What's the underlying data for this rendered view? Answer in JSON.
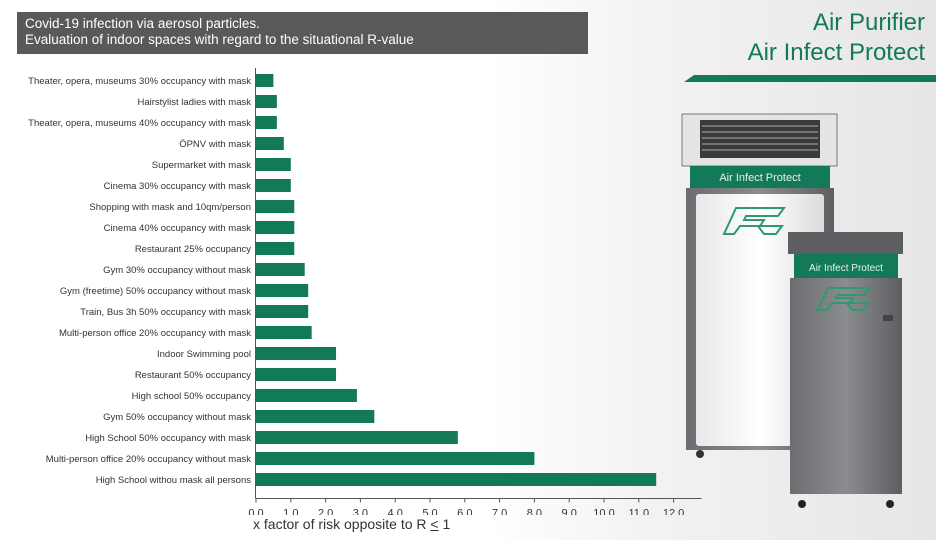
{
  "header": {
    "line1": "Covid-19 infection via aerosol particles.",
    "line2": "Evaluation of indoor spaces with regard to the situational R-value"
  },
  "brand": {
    "line1": "Air Purifier",
    "line2": "Air Infect Protect",
    "color": "#137a59"
  },
  "devices": {
    "large_label": "Air Infect Protect",
    "small_label": "Air Infect Protect"
  },
  "chart_data": {
    "type": "bar",
    "orientation": "horizontal",
    "categories": [
      "Theater, opera, museums 30% occupancy with mask",
      "Hairstylist ladies with mask",
      "Theater, opera, museums 40% occupancy with mask",
      "ÖPNV with mask",
      "Supermarket with mask",
      "Cinema 30% occupancy with mask",
      "Shopping with mask and 10qm/person",
      "Cinema 40% occupancy with mask",
      "Restaurant 25% occupancy",
      "Gym 30% occupancy without mask",
      "Gym (freetime) 50% occupancy without mask",
      "Train, Bus 3h 50% occupancy with mask",
      "Multi-person office 20% occupancy with mask",
      "Indoor Swimming pool",
      "Restaurant 50% occupancy",
      "High school 50% occupancy",
      "Gym 50% occupancy without mask",
      "High School 50% occupancy with mask",
      "Multi-person office 20% occupancy without mask",
      "High School withou mask all persons"
    ],
    "values": [
      0.5,
      0.6,
      0.6,
      0.8,
      1.0,
      1.0,
      1.1,
      1.1,
      1.1,
      1.4,
      1.5,
      1.5,
      1.6,
      2.3,
      2.3,
      2.9,
      3.4,
      5.8,
      8.0,
      11.5
    ],
    "xlim": [
      0,
      12
    ],
    "xticks": [
      "0,0",
      "1,0",
      "2,0",
      "3,0",
      "4,0",
      "5,0",
      "6,0",
      "7,0",
      "8,0",
      "9,0",
      "10,0",
      "11,0",
      "12,0"
    ],
    "xlabel_main": "x factor of risk opposite to R ",
    "xlabel_underlined": "<",
    "xlabel_end": " 1",
    "bar_color": "#137a59",
    "grid": false,
    "legend": "none"
  }
}
